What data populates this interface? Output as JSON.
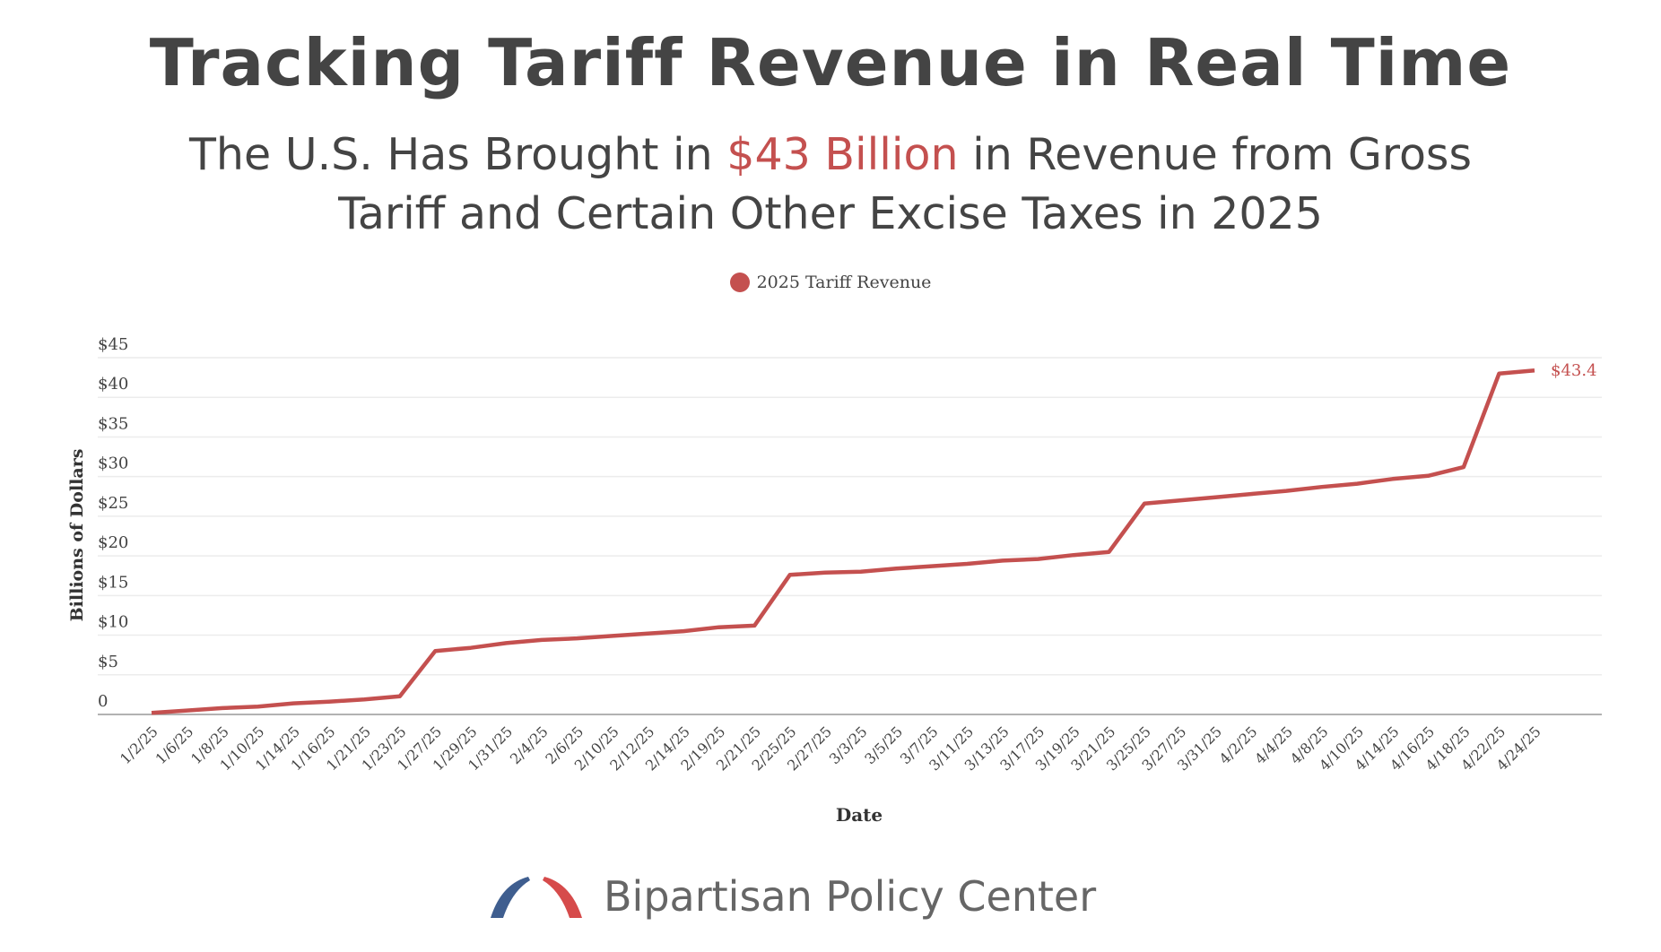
{
  "header": {
    "title": "Tracking Tariff Revenue in Real Time",
    "subtitle_part1": "The U.S. Has Brought in ",
    "subtitle_highlight": "$43 Billion",
    "subtitle_part2": " in Revenue from Gross",
    "subtitle_line2": "Tariff and Certain Other Excise Taxes in 2025"
  },
  "footer": {
    "logo_text": "Bipartisan Policy Center"
  },
  "colors": {
    "series": "#c4504f",
    "text": "#444444",
    "logo_blue": "#3f5e8f",
    "logo_red": "#d64b4b"
  },
  "chart_data": {
    "type": "line",
    "xlabel": "Date",
    "ylabel": "Billions of Dollars",
    "ylim": [
      0,
      45
    ],
    "yticks": [
      0,
      5,
      10,
      15,
      20,
      25,
      30,
      35,
      40,
      45
    ],
    "ytick_labels": [
      "0",
      "$5",
      "$10",
      "$15",
      "$20",
      "$25",
      "$30",
      "$35",
      "$40",
      "$45"
    ],
    "grid": true,
    "legend_position": "top-center",
    "end_label": "$43.4",
    "categories": [
      "1/2/25",
      "1/6/25",
      "1/8/25",
      "1/10/25",
      "1/14/25",
      "1/16/25",
      "1/21/25",
      "1/23/25",
      "1/27/25",
      "1/29/25",
      "1/31/25",
      "2/4/25",
      "2/6/25",
      "2/10/25",
      "2/12/25",
      "2/14/25",
      "2/19/25",
      "2/21/25",
      "2/25/25",
      "2/27/25",
      "3/3/25",
      "3/5/25",
      "3/7/25",
      "3/11/25",
      "3/13/25",
      "3/17/25",
      "3/19/25",
      "3/21/25",
      "3/25/25",
      "3/27/25",
      "3/31/25",
      "4/2/25",
      "4/4/25",
      "4/8/25",
      "4/10/25",
      "4/14/25",
      "4/16/25",
      "4/18/25",
      "4/22/25",
      "4/24/25"
    ],
    "series": [
      {
        "name": "2025 Tariff Revenue",
        "values": [
          0.2,
          0.5,
          0.8,
          1.0,
          1.4,
          1.6,
          1.9,
          2.3,
          8.0,
          8.4,
          9.0,
          9.4,
          9.6,
          9.9,
          10.2,
          10.5,
          11.0,
          11.2,
          17.6,
          17.9,
          18.0,
          18.4,
          18.7,
          19.0,
          19.4,
          19.6,
          20.1,
          20.5,
          26.6,
          27.0,
          27.4,
          27.8,
          28.2,
          28.7,
          29.1,
          29.7,
          30.1,
          31.2,
          43.0,
          43.4
        ]
      }
    ]
  }
}
